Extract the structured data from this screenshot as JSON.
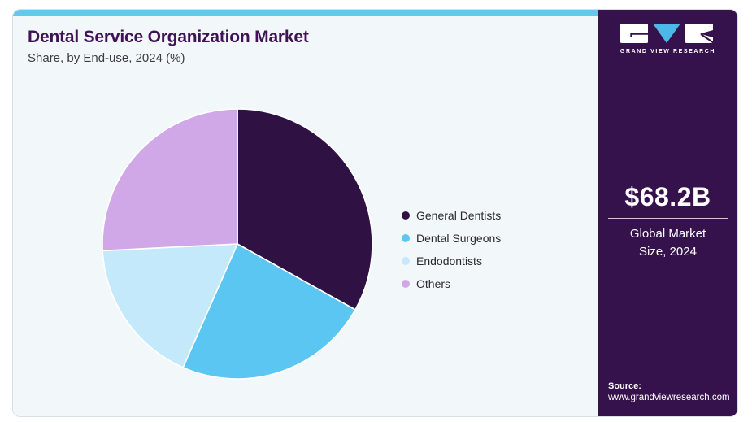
{
  "header": {
    "title": "Dental Service Organization Market",
    "subtitle": "Share, by End-use, 2024 (%)"
  },
  "chart_data": {
    "type": "pie",
    "title": "Dental Service Organization Market Share, by End-use, 2024 (%)",
    "categories": [
      "General Dentists",
      "Dental Surgeons",
      "Endodontists",
      "Others"
    ],
    "values": [
      33.1,
      23.5,
      17.6,
      25.8
    ],
    "unit": "%",
    "values_estimated_from_angles": true,
    "colors": [
      "#2f1243",
      "#5bc6f2",
      "#c3e9fa",
      "#d0a8e8"
    ],
    "start_angle": "12 o'clock",
    "direction": "clockwise",
    "legend_position": "right",
    "slice_stroke": "#ffffff"
  },
  "sidebar": {
    "logo_text": "GRAND VIEW RESEARCH",
    "market_size_value": "$68.2B",
    "market_size_label": "Global Market Size, 2024",
    "source_label": "Source:",
    "source_url": "www.grandviewresearch.com",
    "background": "#35124b",
    "logo_triangle_color": "#4db8e8"
  },
  "colors": {
    "accent_bar": "#62c8f0",
    "title_text": "#3f1356",
    "card_background": "#f2f7fa",
    "card_border": "#d9dee4",
    "legend_text": "#2b2b33"
  }
}
